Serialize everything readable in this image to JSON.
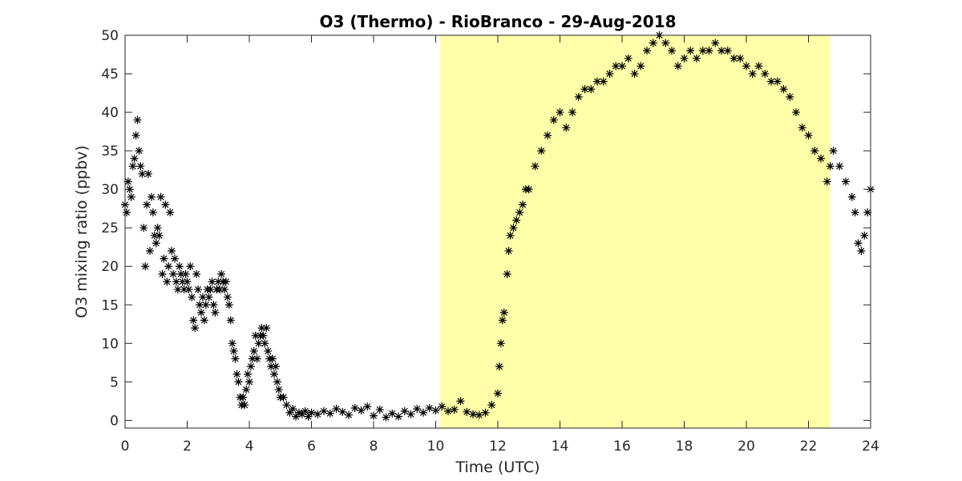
{
  "chart_data": {
    "type": "scatter",
    "title": "O3 (Thermo) - RioBranco - 29-Aug-2018",
    "xlabel": "Time (UTC)",
    "ylabel": "O3 mixing ratio (ppbv)",
    "xlim": [
      0,
      24
    ],
    "ylim": [
      -1,
      50
    ],
    "xticks": [
      0,
      2,
      4,
      6,
      8,
      10,
      12,
      14,
      16,
      18,
      20,
      22,
      24
    ],
    "yticks": [
      0,
      5,
      10,
      15,
      20,
      25,
      30,
      35,
      40,
      45,
      50
    ],
    "grid": false,
    "marker": "asterisk",
    "marker_color": "#000000",
    "highlight": {
      "x_start": 10.15,
      "x_end": 22.7,
      "color": "#ffffaa"
    },
    "series": [
      {
        "points": [
          [
            0.0,
            28
          ],
          [
            0.05,
            27
          ],
          [
            0.1,
            31
          ],
          [
            0.15,
            30
          ],
          [
            0.2,
            29
          ],
          [
            0.25,
            33
          ],
          [
            0.3,
            34
          ],
          [
            0.35,
            37
          ],
          [
            0.4,
            39
          ],
          [
            0.45,
            35
          ],
          [
            0.5,
            33
          ],
          [
            0.55,
            32
          ],
          [
            0.6,
            25
          ],
          [
            0.65,
            20
          ],
          [
            0.7,
            28
          ],
          [
            0.75,
            32
          ],
          [
            0.8,
            22
          ],
          [
            0.85,
            29
          ],
          [
            0.9,
            27
          ],
          [
            0.95,
            24
          ],
          [
            1.0,
            23
          ],
          [
            1.05,
            25
          ],
          [
            1.1,
            24
          ],
          [
            1.15,
            29
          ],
          [
            1.2,
            19
          ],
          [
            1.25,
            21
          ],
          [
            1.3,
            28
          ],
          [
            1.35,
            18
          ],
          [
            1.4,
            20
          ],
          [
            1.45,
            27
          ],
          [
            1.5,
            22
          ],
          [
            1.55,
            19
          ],
          [
            1.6,
            21
          ],
          [
            1.65,
            18
          ],
          [
            1.7,
            17
          ],
          [
            1.75,
            20
          ],
          [
            1.8,
            19
          ],
          [
            1.85,
            18
          ],
          [
            1.9,
            17
          ],
          [
            1.95,
            19
          ],
          [
            2.0,
            18
          ],
          [
            2.05,
            17
          ],
          [
            2.1,
            20
          ],
          [
            2.15,
            16
          ],
          [
            2.2,
            13
          ],
          [
            2.25,
            12
          ],
          [
            2.3,
            19
          ],
          [
            2.35,
            17
          ],
          [
            2.4,
            15
          ],
          [
            2.45,
            14
          ],
          [
            2.5,
            16
          ],
          [
            2.55,
            13
          ],
          [
            2.6,
            15
          ],
          [
            2.65,
            17
          ],
          [
            2.7,
            16
          ],
          [
            2.75,
            17
          ],
          [
            2.8,
            18
          ],
          [
            2.85,
            15
          ],
          [
            2.9,
            14
          ],
          [
            2.95,
            17
          ],
          [
            3.0,
            18
          ],
          [
            3.05,
            17
          ],
          [
            3.1,
            19
          ],
          [
            3.15,
            18
          ],
          [
            3.2,
            17
          ],
          [
            3.25,
            18
          ],
          [
            3.3,
            16
          ],
          [
            3.35,
            15
          ],
          [
            3.4,
            13
          ],
          [
            3.45,
            10
          ],
          [
            3.5,
            9
          ],
          [
            3.55,
            8
          ],
          [
            3.6,
            6
          ],
          [
            3.65,
            5
          ],
          [
            3.7,
            3
          ],
          [
            3.75,
            2
          ],
          [
            3.8,
            3
          ],
          [
            3.85,
            2
          ],
          [
            3.9,
            4
          ],
          [
            3.95,
            6
          ],
          [
            4.0,
            5
          ],
          [
            4.05,
            7
          ],
          [
            4.1,
            8
          ],
          [
            4.15,
            9
          ],
          [
            4.2,
            11
          ],
          [
            4.25,
            8
          ],
          [
            4.3,
            10
          ],
          [
            4.35,
            11
          ],
          [
            4.4,
            12
          ],
          [
            4.45,
            11
          ],
          [
            4.5,
            10
          ],
          [
            4.55,
            12
          ],
          [
            4.6,
            9
          ],
          [
            4.65,
            8
          ],
          [
            4.7,
            7
          ],
          [
            4.75,
            8
          ],
          [
            4.8,
            6
          ],
          [
            4.85,
            7
          ],
          [
            4.9,
            5
          ],
          [
            4.95,
            4
          ],
          [
            5.0,
            3
          ],
          [
            5.1,
            3
          ],
          [
            5.2,
            2
          ],
          [
            5.3,
            1
          ],
          [
            5.4,
            1.5
          ],
          [
            5.5,
            0.5
          ],
          [
            5.6,
            1
          ],
          [
            5.7,
            0.8
          ],
          [
            5.8,
            1.2
          ],
          [
            5.9,
            0.5
          ],
          [
            6.0,
            1
          ],
          [
            6.2,
            0.8
          ],
          [
            6.4,
            1.2
          ],
          [
            6.6,
            0.9
          ],
          [
            6.8,
            1.5
          ],
          [
            7.0,
            1.1
          ],
          [
            7.2,
            0.7
          ],
          [
            7.4,
            1.6
          ],
          [
            7.6,
            1.3
          ],
          [
            7.8,
            1.8
          ],
          [
            8.0,
            0.6
          ],
          [
            8.2,
            1.4
          ],
          [
            8.4,
            0.4
          ],
          [
            8.6,
            0.9
          ],
          [
            8.8,
            0.5
          ],
          [
            9.0,
            1.2
          ],
          [
            9.2,
            0.8
          ],
          [
            9.4,
            1.5
          ],
          [
            9.6,
            1.0
          ],
          [
            9.8,
            1.6
          ],
          [
            10.0,
            1.3
          ],
          [
            10.2,
            1.8
          ],
          [
            10.4,
            1.2
          ],
          [
            10.6,
            1.4
          ],
          [
            10.8,
            2.5
          ],
          [
            11.0,
            1.1
          ],
          [
            11.2,
            0.8
          ],
          [
            11.4,
            0.7
          ],
          [
            11.6,
            1.0
          ],
          [
            11.8,
            2.0
          ],
          [
            12.0,
            3.5
          ],
          [
            12.05,
            7
          ],
          [
            12.1,
            10
          ],
          [
            12.15,
            13
          ],
          [
            12.2,
            14
          ],
          [
            12.3,
            19
          ],
          [
            12.35,
            22
          ],
          [
            12.4,
            24
          ],
          [
            12.5,
            25
          ],
          [
            12.6,
            26
          ],
          [
            12.7,
            27
          ],
          [
            12.8,
            28
          ],
          [
            12.9,
            30
          ],
          [
            13.0,
            30
          ],
          [
            13.2,
            33
          ],
          [
            13.4,
            35
          ],
          [
            13.6,
            37
          ],
          [
            13.8,
            39
          ],
          [
            14.0,
            40
          ],
          [
            14.2,
            38
          ],
          [
            14.4,
            40
          ],
          [
            14.6,
            42
          ],
          [
            14.8,
            43
          ],
          [
            15.0,
            43
          ],
          [
            15.2,
            44
          ],
          [
            15.4,
            44
          ],
          [
            15.6,
            45
          ],
          [
            15.8,
            46
          ],
          [
            16.0,
            46
          ],
          [
            16.2,
            47
          ],
          [
            16.4,
            45
          ],
          [
            16.6,
            46
          ],
          [
            16.8,
            48
          ],
          [
            17.0,
            49
          ],
          [
            17.2,
            50
          ],
          [
            17.4,
            49
          ],
          [
            17.6,
            48
          ],
          [
            17.8,
            46
          ],
          [
            18.0,
            47
          ],
          [
            18.2,
            48
          ],
          [
            18.4,
            47
          ],
          [
            18.6,
            48
          ],
          [
            18.8,
            48
          ],
          [
            19.0,
            49
          ],
          [
            19.2,
            48
          ],
          [
            19.4,
            48
          ],
          [
            19.6,
            47
          ],
          [
            19.8,
            47
          ],
          [
            20.0,
            46
          ],
          [
            20.2,
            45
          ],
          [
            20.4,
            46
          ],
          [
            20.6,
            45
          ],
          [
            20.8,
            44
          ],
          [
            21.0,
            44
          ],
          [
            21.2,
            43
          ],
          [
            21.4,
            42
          ],
          [
            21.6,
            40
          ],
          [
            21.8,
            38
          ],
          [
            22.0,
            37
          ],
          [
            22.2,
            35
          ],
          [
            22.4,
            34
          ],
          [
            22.6,
            31
          ],
          [
            22.7,
            33
          ],
          [
            22.8,
            35
          ],
          [
            23.0,
            33
          ],
          [
            23.2,
            31
          ],
          [
            23.4,
            29
          ],
          [
            23.5,
            27
          ],
          [
            23.6,
            23
          ],
          [
            23.7,
            22
          ],
          [
            23.8,
            24
          ],
          [
            23.9,
            27
          ],
          [
            24.0,
            30
          ]
        ]
      }
    ]
  }
}
